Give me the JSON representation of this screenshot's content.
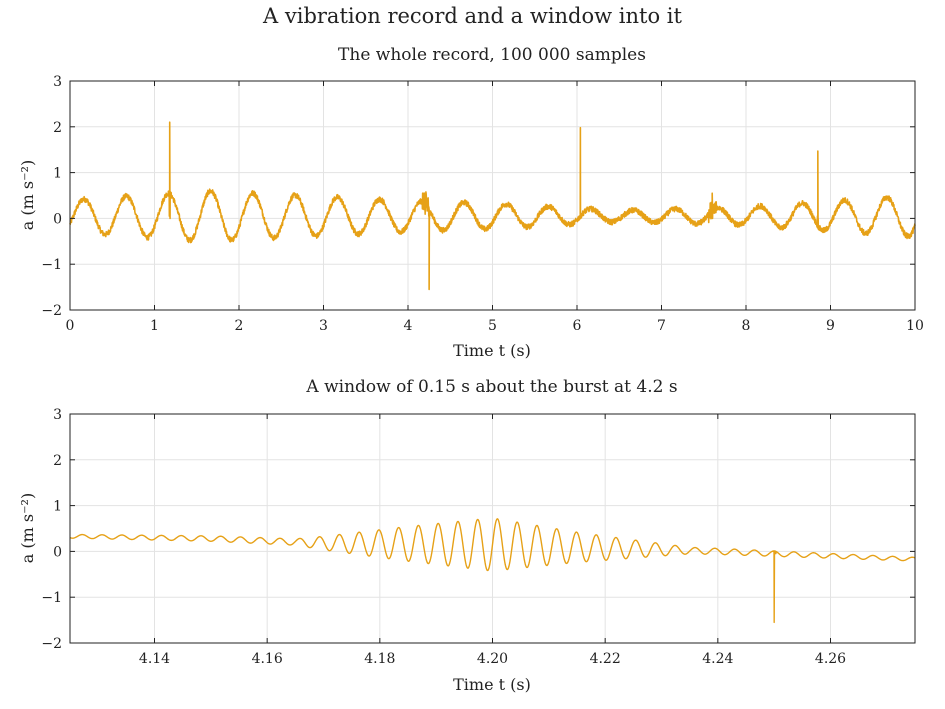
{
  "figure": {
    "title": "A vibration record and a window into it"
  },
  "style": {
    "series_color": "#e6a117",
    "grid_color": "#e3e3e3"
  },
  "chart_data": [
    {
      "type": "line",
      "title": "The whole record, 100 000 samples",
      "xlabel": "Time t (s)",
      "ylabel": "a (m s⁻²)",
      "xlim": [
        0,
        10
      ],
      "ylim": [
        -2,
        3
      ],
      "xticks": [
        0,
        1,
        2,
        3,
        4,
        5,
        6,
        7,
        8,
        9,
        10
      ],
      "xtick_labels": [
        "0",
        "1",
        "2",
        "3",
        "4",
        "5",
        "6",
        "7",
        "8",
        "9",
        "10"
      ],
      "yticks": [
        -2,
        -1,
        0,
        1,
        2,
        3
      ],
      "ytick_labels": [
        "−2",
        "−1",
        "0",
        "1",
        "2",
        "3"
      ],
      "grid": true,
      "signal": {
        "oscillation_frequency_hz": 2,
        "amplitude_envelope": {
          "t": [
            0,
            1.6,
            4.2,
            5.0,
            6.5,
            8.0,
            10.0
          ],
          "amp": [
            0.35,
            0.55,
            0.32,
            0.28,
            0.12,
            0.2,
            0.45
          ]
        },
        "baseline": 0.05,
        "noise_band": 0.06
      },
      "spikes": [
        {
          "t": 1.18,
          "peak": 2.1
        },
        {
          "t": 4.25,
          "peak": -1.55
        },
        {
          "t": 6.04,
          "peak": 1.98
        },
        {
          "t": 7.6,
          "peak": 0.55
        },
        {
          "t": 8.85,
          "peak": 1.47
        }
      ],
      "burst": {
        "t_start": 4.17,
        "t_end": 4.24,
        "peak": 0.75
      }
    },
    {
      "type": "line",
      "title": "A window of 0.15 s about the burst at 4.2 s",
      "xlabel": "Time t (s)",
      "ylabel": "a (m s⁻²)",
      "xlim": [
        4.125,
        4.275
      ],
      "ylim": [
        -2,
        3
      ],
      "xticks": [
        4.14,
        4.16,
        4.18,
        4.2,
        4.22,
        4.24,
        4.26
      ],
      "xtick_labels": [
        "4.14",
        "4.16",
        "4.18",
        "4.20",
        "4.22",
        "4.24",
        "4.26"
      ],
      "yticks": [
        -2,
        -1,
        0,
        1,
        2,
        3
      ],
      "ytick_labels": [
        "−2",
        "−1",
        "0",
        "1",
        "2",
        "3"
      ],
      "grid": true,
      "signal": {
        "ripple_frequency_hz": 285,
        "trend": {
          "t": [
            4.125,
            4.15,
            4.17,
            4.2,
            4.22,
            4.24,
            4.275
          ],
          "level": [
            0.33,
            0.28,
            0.18,
            0.15,
            0.07,
            0.0,
            -0.17
          ]
        },
        "ripple_envelope": {
          "t": [
            4.125,
            4.165,
            4.185,
            4.2,
            4.215,
            4.235,
            4.275
          ],
          "amp": [
            0.04,
            0.07,
            0.38,
            0.58,
            0.33,
            0.07,
            0.04
          ]
        }
      },
      "spikes": [
        {
          "t": 4.25,
          "peak": -1.55
        }
      ]
    }
  ]
}
